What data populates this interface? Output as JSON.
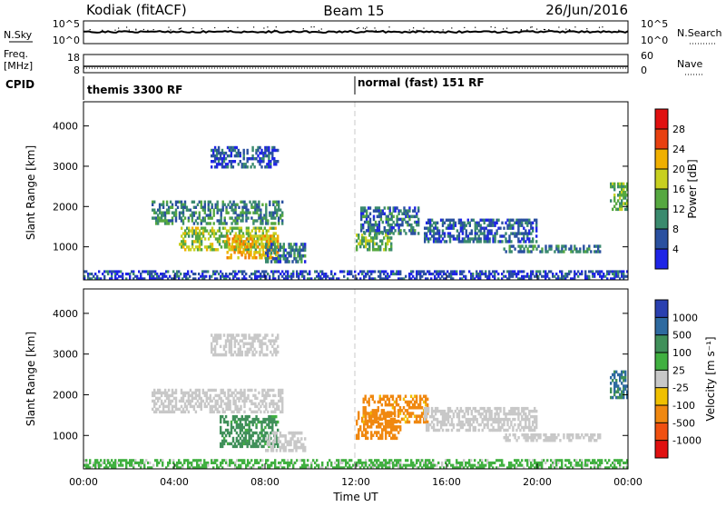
{
  "header": {
    "station": "Kodiak (fitACF)",
    "beam": "Beam 15",
    "date": "26/Jun/2016"
  },
  "strip_panels": {
    "nsky": {
      "left_label": "N.Sky",
      "left_ticks": [
        "10^5",
        "10^0"
      ],
      "right_label": "N.Search",
      "right_ticks": [
        "10^5",
        "10^0"
      ]
    },
    "freq": {
      "left_label_1": "Freq.",
      "left_label_2": "[MHz]",
      "left_ticks": [
        "18",
        "8"
      ],
      "right_label": "Nave",
      "right_ticks": [
        "60",
        "0"
      ]
    },
    "cpid": {
      "label": "CPID",
      "mode_1": "themis 3300 RF",
      "mode_2": "normal (fast) 151 RF"
    }
  },
  "colors": {
    "power_scale": [
      "#1e24e6",
      "#2a50a0",
      "#3a8a6e",
      "#56a840",
      "#c8d020",
      "#f0b000",
      "#f07800",
      "#e84010",
      "#e01010"
    ],
    "velocity_scale": [
      "#e01010",
      "#f05010",
      "#f08810",
      "#f0c000",
      "#c8c8c8",
      "#c8c8c8",
      "#40b040",
      "#40905a",
      "#2e6aa0",
      "#2a40b0"
    ],
    "dashed_line": "#c8c8c8"
  },
  "chart_data": [
    {
      "type": "heatmap",
      "name": "power",
      "ylabel": "Slant Range [km]",
      "ylim": [
        180,
        4600
      ],
      "yticks": [
        "1000",
        "2000",
        "3000",
        "4000"
      ],
      "xlim_hours": [
        0,
        24
      ],
      "colorbar": {
        "label": "Power [dB]",
        "range": [
          0,
          32
        ],
        "ticks": [
          "4",
          "8",
          "12",
          "16",
          "20",
          "24",
          "28"
        ]
      },
      "regions": [
        {
          "t0": 3.0,
          "t1": 8.8,
          "r0": 1550,
          "r1": 2150,
          "v": 10
        },
        {
          "t0": 4.2,
          "t1": 8.5,
          "r0": 900,
          "r1": 1500,
          "v": 16
        },
        {
          "t0": 6.3,
          "t1": 8.6,
          "r0": 700,
          "r1": 1300,
          "v": 22
        },
        {
          "t0": 5.6,
          "t1": 8.6,
          "r0": 2950,
          "r1": 3500,
          "v": 6
        },
        {
          "t0": 8.0,
          "t1": 9.8,
          "r0": 600,
          "r1": 1100,
          "v": 8
        },
        {
          "t0": 12.0,
          "t1": 13.6,
          "r0": 900,
          "r1": 1400,
          "v": 14
        },
        {
          "t0": 12.2,
          "t1": 14.8,
          "r0": 1300,
          "r1": 2000,
          "v": 8
        },
        {
          "t0": 15.0,
          "t1": 20.0,
          "r0": 1100,
          "r1": 1700,
          "v": 6
        },
        {
          "t0": 18.5,
          "t1": 22.8,
          "r0": 850,
          "r1": 1050,
          "v": 9
        },
        {
          "t0": 23.2,
          "t1": 24.0,
          "r0": 1900,
          "r1": 2600,
          "v": 14
        },
        {
          "t0": 0.0,
          "t1": 24.0,
          "r0": 180,
          "r1": 420,
          "v": 5
        }
      ]
    },
    {
      "type": "heatmap",
      "name": "velocity",
      "xlabel": "Time UT",
      "ylabel": "Slant Range [km]",
      "ylim": [
        180,
        4600
      ],
      "yticks": [
        "1000",
        "2000",
        "3000",
        "4000"
      ],
      "xticks": [
        "00:00",
        "04:00",
        "08:00",
        "12:00",
        "16:00",
        "20:00",
        "00:00"
      ],
      "xlim_hours": [
        0,
        24
      ],
      "colorbar": {
        "label": "Velocity [m s⁻¹]",
        "ticks": [
          "-1000",
          "-500",
          "-100",
          "-25",
          "25",
          "100",
          "500",
          "1000"
        ]
      },
      "regions": [
        {
          "t0": 3.0,
          "t1": 8.8,
          "r0": 1550,
          "r1": 2150,
          "v": 0
        },
        {
          "t0": 6.0,
          "t1": 8.6,
          "r0": 700,
          "r1": 1500,
          "v": 150
        },
        {
          "t0": 5.6,
          "t1": 8.6,
          "r0": 2950,
          "r1": 3500,
          "v": 0
        },
        {
          "t0": 8.0,
          "t1": 9.8,
          "r0": 600,
          "r1": 1100,
          "v": 0
        },
        {
          "t0": 12.0,
          "t1": 14.0,
          "r0": 900,
          "r1": 1600,
          "v": -300
        },
        {
          "t0": 12.3,
          "t1": 15.2,
          "r0": 1300,
          "r1": 2000,
          "v": -150
        },
        {
          "t0": 15.0,
          "t1": 20.0,
          "r0": 1100,
          "r1": 1700,
          "v": 0
        },
        {
          "t0": 18.5,
          "t1": 22.8,
          "r0": 850,
          "r1": 1050,
          "v": 0
        },
        {
          "t0": 23.2,
          "t1": 24.0,
          "r0": 1900,
          "r1": 2600,
          "v": 600
        },
        {
          "t0": 0.0,
          "t1": 24.0,
          "r0": 180,
          "r1": 420,
          "v": 40
        }
      ]
    }
  ]
}
